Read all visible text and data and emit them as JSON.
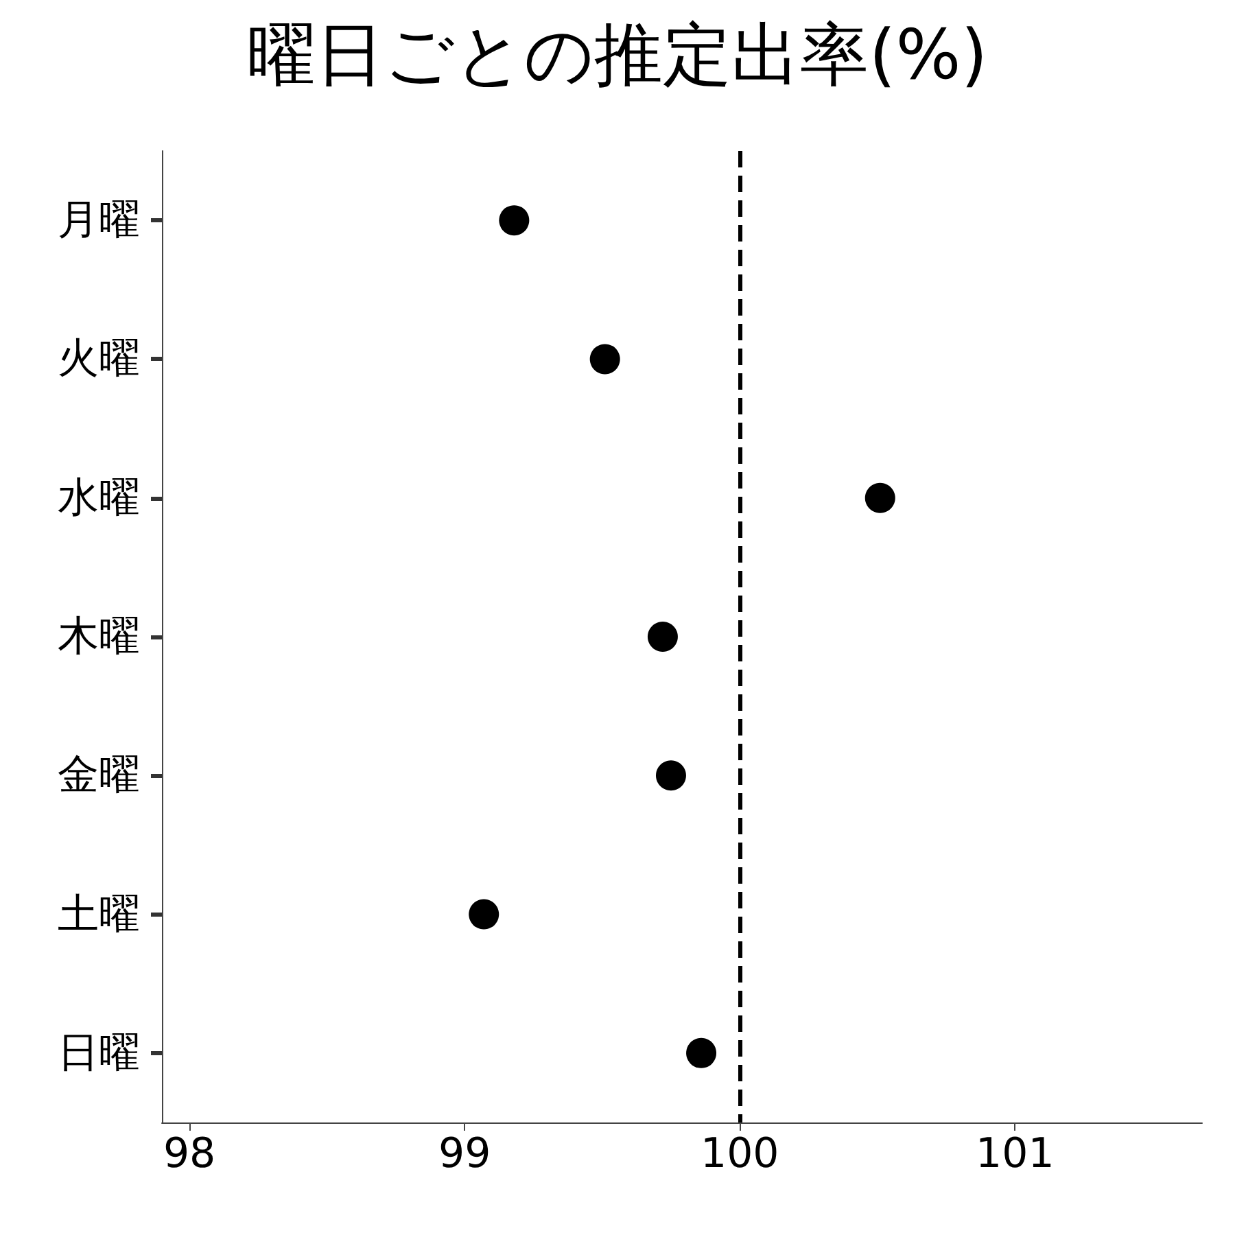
{
  "chart_data": {
    "type": "scatter",
    "title": "曜日ごとの推定出率(%)",
    "orientation": "horizontal",
    "categories": [
      "月曜",
      "火曜",
      "水曜",
      "木曜",
      "金曜",
      "土曜",
      "日曜"
    ],
    "values": [
      99.18,
      99.51,
      100.51,
      99.72,
      99.75,
      99.07,
      99.86
    ],
    "color": "#000000",
    "marker": "circle",
    "xlim": [
      97.9,
      101.68
    ],
    "xticks": [
      98,
      99,
      100,
      101
    ],
    "ref_lines": [
      {
        "axis": "x",
        "value": 100,
        "color": "#000000",
        "line_style": "dashed"
      }
    ]
  }
}
